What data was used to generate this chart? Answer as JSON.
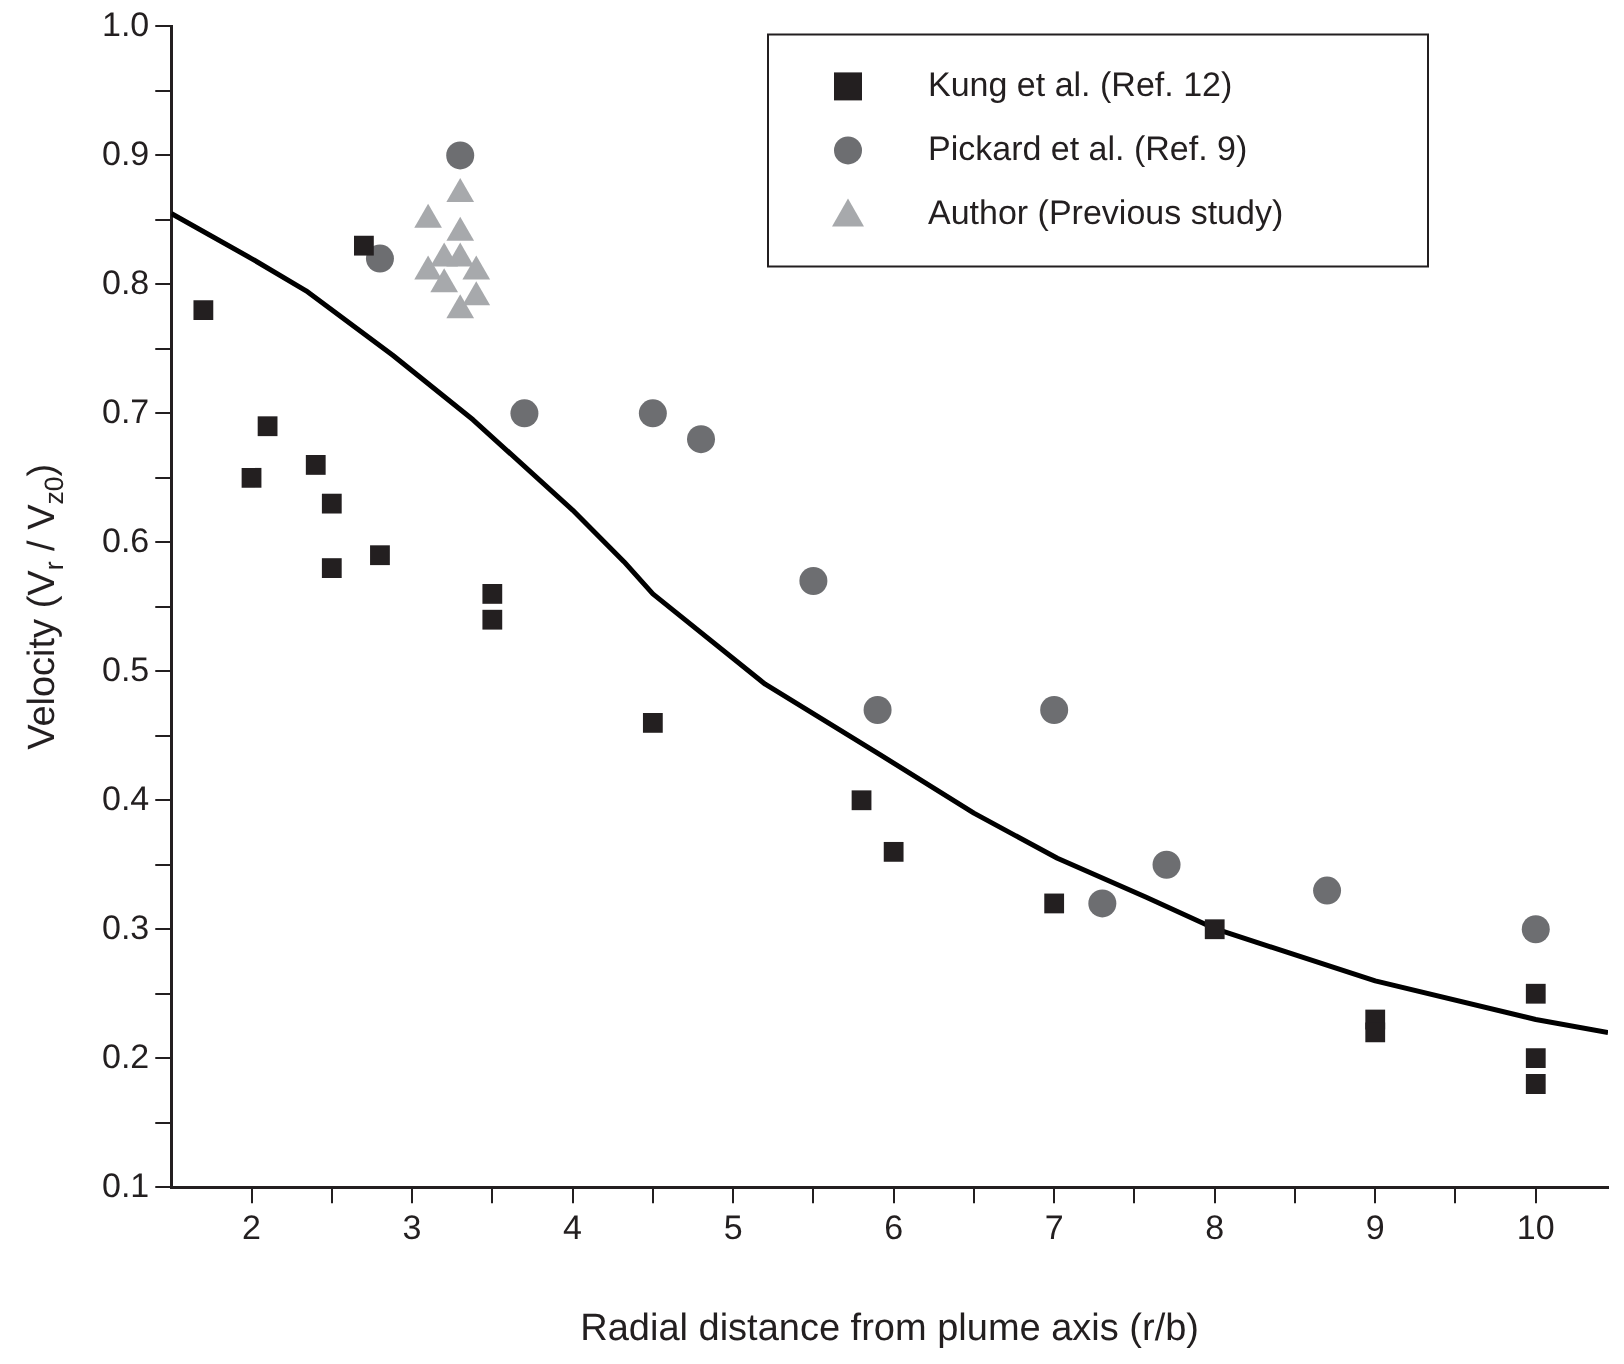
{
  "chart_data": {
    "type": "scatter",
    "xlabel": "Radial distance from plume axis (r/b)",
    "ylabel": "Velocity (V$_{r}$ / V$_{z0}$)",
    "xlim": [
      1.5,
      10.45
    ],
    "ylim": [
      0.1,
      1.0
    ],
    "xticks": [
      2,
      {
        "value": 2.5,
        "label": null
      },
      3,
      {
        "value": 3.5,
        "label": null
      },
      4,
      {
        "value": 4.5,
        "label": null
      },
      5,
      {
        "value": 5.5,
        "label": null
      },
      6,
      {
        "value": 6.5,
        "label": null
      },
      7,
      {
        "value": 7.5,
        "label": null
      },
      8,
      {
        "value": 8.5,
        "label": null
      },
      9,
      {
        "value": 9.5,
        "label": null
      },
      10
    ],
    "yticks": [
      0.1,
      {
        "value": 0.15,
        "label": null
      },
      0.2,
      {
        "value": 0.25,
        "label": null
      },
      0.3,
      {
        "value": 0.35,
        "label": null
      },
      0.4,
      {
        "value": 0.45,
        "label": null
      },
      0.5,
      {
        "value": 0.55,
        "label": null
      },
      0.6,
      {
        "value": 0.65,
        "label": null
      },
      0.7,
      {
        "value": 0.75,
        "label": null
      },
      0.8,
      {
        "value": 0.85,
        "label": null
      },
      0.9,
      {
        "value": 0.95,
        "label": null
      },
      {
        "value": 1.0,
        "label": "1.0"
      }
    ],
    "grid": false,
    "legend": "top right",
    "series": [
      {
        "name": "Kung et al. (Ref. 12)",
        "color": "#231f20",
        "marker": "square",
        "x": [
          1.7,
          2.7,
          2.1,
          2.0,
          2.4,
          2.5,
          2.5,
          2.8,
          3.5,
          3.5,
          4.5,
          5.8,
          6.0,
          7.0,
          8.0,
          9.0,
          9.0,
          10.0,
          10.0,
          10.0
        ],
        "values": [
          0.78,
          0.83,
          0.69,
          0.65,
          0.66,
          0.63,
          0.58,
          0.59,
          0.56,
          0.54,
          0.46,
          0.4,
          0.36,
          0.32,
          0.3,
          0.23,
          0.22,
          0.25,
          0.2,
          0.18
        ]
      },
      {
        "name": "Pickard et al. (Ref. 9)",
        "color": "#6d6e71",
        "marker": "circle",
        "x": [
          2.8,
          3.3,
          3.7,
          4.5,
          4.8,
          5.5,
          5.9,
          7.0,
          7.3,
          7.7,
          8.7,
          10.0
        ],
        "values": [
          0.82,
          0.9,
          0.7,
          0.7,
          0.68,
          0.57,
          0.47,
          0.47,
          0.32,
          0.35,
          0.33,
          0.3
        ]
      },
      {
        "name": "Author (Previous study)",
        "color": "#a7a9ac",
        "marker": "triangle",
        "x": [
          3.1,
          3.1,
          3.2,
          3.2,
          3.3,
          3.3,
          3.3,
          3.3,
          3.4,
          3.4
        ],
        "values": [
          0.85,
          0.81,
          0.82,
          0.8,
          0.87,
          0.84,
          0.82,
          0.78,
          0.81,
          0.79
        ]
      },
      {
        "type": "line",
        "color": "#000000",
        "marker": "none",
        "x": [
          1.5,
          2.0,
          2.34,
          2.88,
          3.38,
          4.0,
          4.32,
          4.5,
          5.2,
          5.92,
          6.5,
          7.02,
          7.57,
          8.01,
          9.0,
          10.0,
          10.45
        ],
        "values": [
          0.855,
          0.82,
          0.795,
          0.745,
          0.695,
          0.625,
          0.585,
          0.56,
          0.49,
          0.435,
          0.39,
          0.355,
          0.325,
          0.3,
          0.26,
          0.23,
          0.22
        ]
      }
    ]
  }
}
